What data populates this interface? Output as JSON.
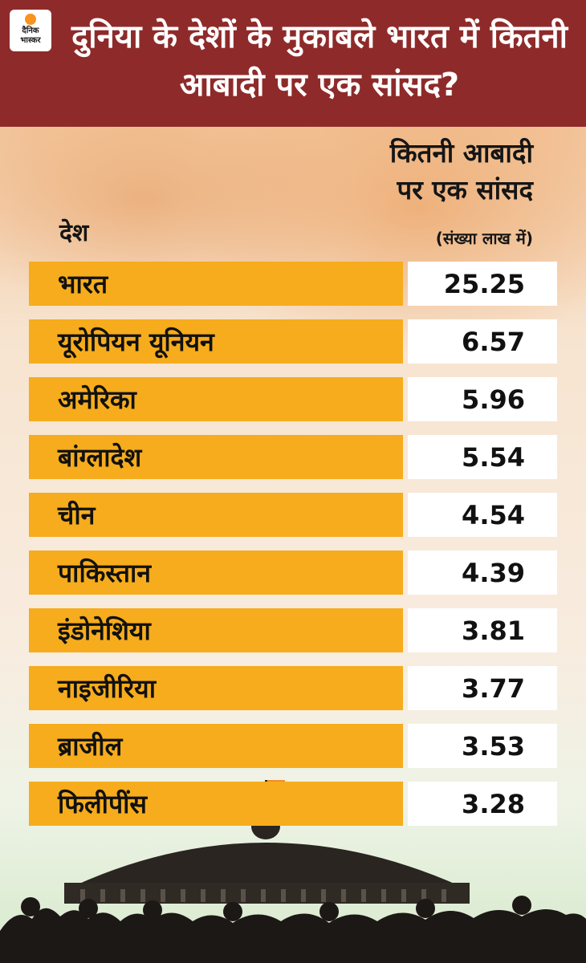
{
  "logo": {
    "text_line1": "दैनिक",
    "text_line2": "भास्कर",
    "accent": "#f7931e"
  },
  "title": "दुनिया के देशों के मुकाबले भारत में कितनी आबादी पर एक सांसद?",
  "column_headers": {
    "country": "देश",
    "value_line1": "कितनी आबादी",
    "value_line2": "पर एक सांसद",
    "unit": "(संख्या लाख में)"
  },
  "colors": {
    "header_bg": "#8e2b2a",
    "row_bar": "#f6ac1c",
    "value_cell": "#ffffff"
  },
  "chart_data": {
    "type": "table",
    "categories": [
      "भारत",
      "यूरोपियन यूनियन",
      "अमेरिका",
      "बांग्लादेश",
      "चीन",
      "पाकिस्तान",
      "इंडोनेशिया",
      "नाइजीरिया",
      "ब्राजील",
      "फिलीपींस"
    ],
    "values": [
      "25.25",
      "6.57",
      "5.96",
      "5.54",
      "4.54",
      "4.39",
      "3.81",
      "3.77",
      "3.53",
      "3.28"
    ]
  }
}
